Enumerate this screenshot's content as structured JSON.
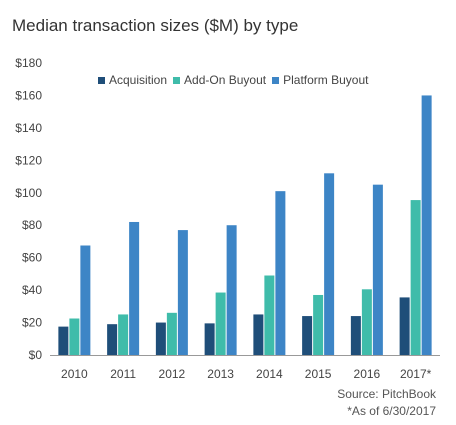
{
  "chart_data": {
    "type": "bar",
    "title": "Median transaction sizes ($M) by type",
    "categories": [
      "2010",
      "2011",
      "2012",
      "2013",
      "2014",
      "2015",
      "2016",
      "2017*"
    ],
    "series": [
      {
        "name": "Acquisition",
        "color": "#1f4e79",
        "values": [
          17.5,
          19,
          20,
          19.5,
          25,
          24,
          24,
          35.5
        ]
      },
      {
        "name": "Add-On Buyout",
        "color": "#3fbcaa",
        "values": [
          22.5,
          25,
          26,
          38.5,
          49,
          37,
          40.5,
          95.5
        ]
      },
      {
        "name": "Platform Buyout",
        "color": "#3d85c6",
        "values": [
          67.5,
          82,
          77,
          80,
          101,
          112,
          105,
          160
        ]
      }
    ],
    "y_ticks": [
      "$0",
      "$20",
      "$40",
      "$60",
      "$80",
      "$100",
      "$120",
      "$140",
      "$160",
      "$180"
    ],
    "ylim": [
      0,
      180
    ],
    "xlabel": "",
    "ylabel": "",
    "grid": false,
    "legend_position": "top",
    "source": "Source: PitchBook",
    "footnote": "*As of 6/30/2017"
  }
}
